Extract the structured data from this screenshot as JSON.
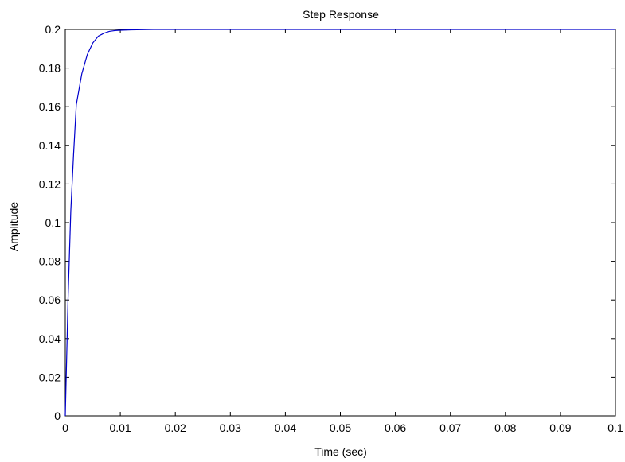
{
  "chart_data": {
    "type": "line",
    "title": "Step Response",
    "xlabel": "Time (sec)",
    "ylabel": "Amplitude",
    "xlim": [
      0,
      0.1
    ],
    "ylim": [
      0,
      0.2
    ],
    "xticks": [
      0,
      0.01,
      0.02,
      0.03,
      0.04,
      0.05,
      0.06,
      0.07,
      0.08,
      0.09,
      0.1
    ],
    "xtick_labels": [
      "0",
      "0.01",
      "0.02",
      "0.03",
      "0.04",
      "0.05",
      "0.06",
      "0.07",
      "0.08",
      "0.09",
      "0.1"
    ],
    "yticks": [
      0,
      0.02,
      0.04,
      0.06,
      0.08,
      0.1,
      0.12,
      0.14,
      0.16,
      0.18,
      0.2
    ],
    "ytick_labels": [
      "0",
      "0.02",
      "0.04",
      "0.06",
      "0.08",
      "0.1",
      "0.12",
      "0.14",
      "0.16",
      "0.18",
      "0.2"
    ],
    "grid": false,
    "legend": "none",
    "series": [
      {
        "color": "#0000cc",
        "x": [
          0,
          0.0005,
          0.001,
          0.0015,
          0.002,
          0.003,
          0.004,
          0.005,
          0.006,
          0.007,
          0.008,
          0.009,
          0.01,
          0.012,
          0.014,
          0.016,
          0.018,
          0.02,
          0.03,
          0.05,
          0.07,
          0.1
        ],
        "y": [
          0,
          0.06,
          0.106,
          0.135,
          0.161,
          0.177,
          0.187,
          0.193,
          0.1965,
          0.198,
          0.199,
          0.1994,
          0.1996,
          0.1998,
          0.1999,
          0.2,
          0.2,
          0.2,
          0.2,
          0.2,
          0.2,
          0.2
        ]
      }
    ]
  }
}
